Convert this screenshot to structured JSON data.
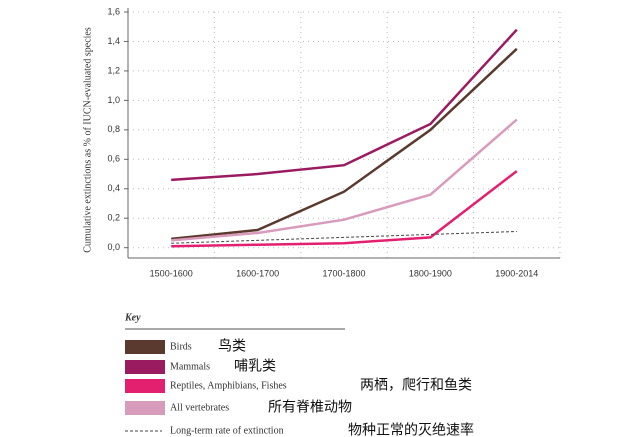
{
  "chart_data": {
    "type": "line",
    "ylabel": "Cumulative extinctions as % of IUCN-evaluated species",
    "categories": [
      "1500-1600",
      "1600-1700",
      "1700-1800",
      "1800-1900",
      "1900-2014"
    ],
    "ylim": [
      -0.07,
      1.6
    ],
    "yticks": [
      {
        "value": 0,
        "label": "0,0"
      },
      {
        "value": 0.2,
        "label": "0,2"
      },
      {
        "value": 0.4,
        "label": "0,4"
      },
      {
        "value": 0.6,
        "label": "0,6"
      },
      {
        "value": 0.8,
        "label": "0,8"
      },
      {
        "value": 1.0,
        "label": "1,0"
      },
      {
        "value": 1.2,
        "label": "1,2"
      },
      {
        "value": 1.4,
        "label": "1,4"
      },
      {
        "value": 1.6,
        "label": "1,6"
      }
    ],
    "grid": true,
    "legend_title": "Key",
    "series": [
      {
        "name": "Birds",
        "translation": "鸟类",
        "color": "#5a3a2e",
        "values": [
          0.06,
          0.12,
          0.38,
          0.8,
          1.35
        ]
      },
      {
        "name": "Mammals",
        "translation": "哺乳类",
        "color": "#9b1b60",
        "values": [
          0.46,
          0.5,
          0.56,
          0.84,
          1.48
        ]
      },
      {
        "name": "Reptiles, Amphibians, Fishes",
        "translation": "两栖，爬行和鱼类",
        "color": "#e3206f",
        "values": [
          0.01,
          0.02,
          0.03,
          0.07,
          0.52
        ]
      },
      {
        "name": "All vertebrates",
        "translation": "所有脊椎动物",
        "color": "#d89bbb",
        "values": [
          0.05,
          0.1,
          0.19,
          0.36,
          0.87
        ]
      },
      {
        "name": "Long-term rate of extinction",
        "translation": "物种正常的灭绝速率",
        "color": "#444444",
        "dashed": true,
        "values": [
          0.03,
          0.05,
          0.07,
          0.09,
          0.11
        ]
      }
    ]
  }
}
